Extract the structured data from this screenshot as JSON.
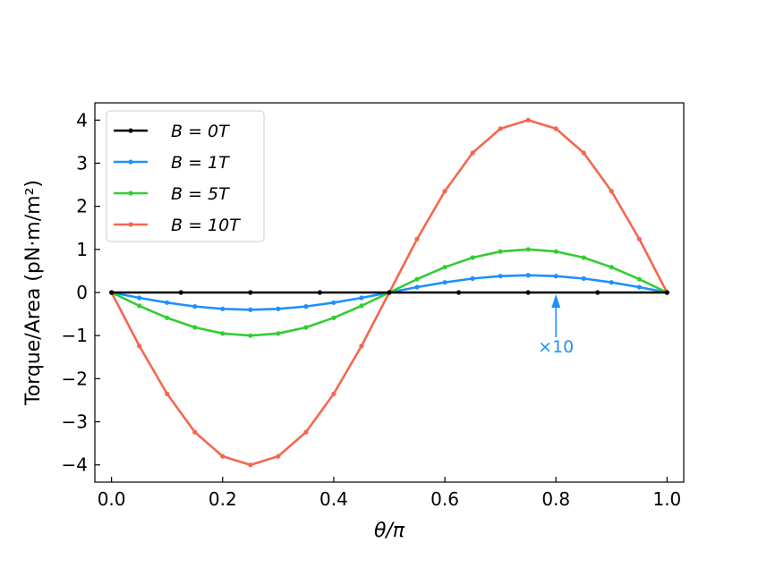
{
  "chart_data": {
    "type": "line",
    "xlabel": "θ/π",
    "ylabel": "Torque/Area (pN·m/m²)",
    "xlim": [
      -0.03,
      1.03
    ],
    "ylim": [
      -4.4,
      4.4
    ],
    "x_ticks": [
      0.0,
      0.2,
      0.4,
      0.6,
      0.8,
      1.0
    ],
    "x_tick_labels": [
      "0.0",
      "0.2",
      "0.4",
      "0.6",
      "0.8",
      "1.0"
    ],
    "y_ticks": [
      4,
      3,
      2,
      1,
      0,
      -1,
      -2,
      -3,
      -4
    ],
    "y_tick_labels": [
      "4",
      "3",
      "2",
      "1",
      "0",
      "−1",
      "−2",
      "−3",
      "−4"
    ],
    "legend_position": "top-left",
    "series": [
      {
        "name": "B = 0T",
        "color": "#000000",
        "x": [
          0.0,
          0.125,
          0.25,
          0.375,
          0.5,
          0.625,
          0.75,
          0.875,
          1.0
        ],
        "y": [
          0,
          0,
          0,
          0,
          0,
          0,
          0,
          0,
          0
        ]
      },
      {
        "name": "B = 1T",
        "color": "#1e90ff",
        "x": [
          0.0,
          0.05,
          0.1,
          0.15,
          0.2,
          0.25,
          0.3,
          0.35,
          0.4,
          0.45,
          0.5,
          0.55,
          0.6,
          0.65,
          0.7,
          0.75,
          0.8,
          0.85,
          0.9,
          0.95,
          1.0
        ],
        "y": [
          0,
          -0.124,
          -0.235,
          -0.324,
          -0.38,
          -0.4,
          -0.38,
          -0.324,
          -0.235,
          -0.124,
          0,
          0.124,
          0.235,
          0.324,
          0.38,
          0.4,
          0.38,
          0.324,
          0.235,
          0.124,
          0
        ]
      },
      {
        "name": "B = 5T",
        "color": "#32cd32",
        "x": [
          0.0,
          0.05,
          0.1,
          0.15,
          0.2,
          0.25,
          0.3,
          0.35,
          0.4,
          0.45,
          0.5,
          0.55,
          0.6,
          0.65,
          0.7,
          0.75,
          0.8,
          0.85,
          0.9,
          0.95,
          1.0
        ],
        "y": [
          0,
          -0.309,
          -0.588,
          -0.809,
          -0.951,
          -1.0,
          -0.951,
          -0.809,
          -0.588,
          -0.309,
          0,
          0.309,
          0.588,
          0.809,
          0.951,
          1.0,
          0.951,
          0.809,
          0.588,
          0.309,
          0
        ]
      },
      {
        "name": "B = 10T",
        "color": "#f4674e",
        "x": [
          0.0,
          0.05,
          0.1,
          0.15,
          0.2,
          0.25,
          0.3,
          0.35,
          0.4,
          0.45,
          0.5,
          0.55,
          0.6,
          0.65,
          0.7,
          0.75,
          0.8,
          0.85,
          0.9,
          0.95,
          1.0
        ],
        "y": [
          0,
          -1.24,
          -2.35,
          -3.24,
          -3.8,
          -4.0,
          -3.8,
          -3.24,
          -2.35,
          -1.24,
          0,
          1.24,
          2.35,
          3.24,
          3.8,
          4.0,
          3.8,
          3.24,
          2.35,
          1.24,
          0
        ]
      }
    ],
    "annotation": {
      "text": "×10",
      "color": "#1e90ff",
      "points_to": {
        "x": 0.8,
        "y": 0.0
      }
    }
  }
}
